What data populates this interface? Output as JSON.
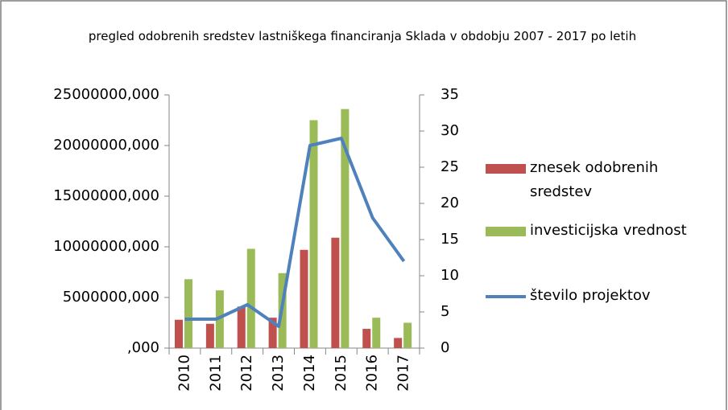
{
  "chart_data": {
    "type": "bar",
    "title": "pregled odobrenih sredstev lastniškega financiranja Sklada v obdobju 2007 - 2017 po letih",
    "categories": [
      "2010",
      "2011",
      "2012",
      "2013",
      "2014",
      "2015",
      "2016",
      "2017"
    ],
    "series": [
      {
        "name": "znesek odobrenih sredstev",
        "type": "bar",
        "color": "#c0504d",
        "values": [
          2800000,
          2400000,
          4100000,
          3000000,
          9700000,
          10900000,
          1900000,
          1000000
        ]
      },
      {
        "name": "investicijska vrednost",
        "type": "bar",
        "color": "#9bbb59",
        "values": [
          6800000,
          5700000,
          9800000,
          7400000,
          22500000,
          23600000,
          3000000,
          2500000
        ]
      },
      {
        "name": "število projektov",
        "type": "line",
        "axis": "y2",
        "color": "#4f81bd",
        "values": [
          4,
          4,
          6,
          3,
          28,
          29,
          18,
          12
        ]
      }
    ],
    "ylim": [
      0,
      25000000
    ],
    "yticks": [
      {
        "value": 0,
        "label": ",000"
      },
      {
        "value": 5000000,
        "label": "5000000,000"
      },
      {
        "value": 10000000,
        "label": "10000000,000"
      },
      {
        "value": 15000000,
        "label": "15000000,000"
      },
      {
        "value": 20000000,
        "label": "20000000,000"
      },
      {
        "value": 25000000,
        "label": "25000000,000"
      }
    ],
    "y2lim": [
      0,
      35
    ],
    "y2ticks": [
      0,
      5,
      10,
      15,
      20,
      25,
      30,
      35
    ],
    "legend": "right",
    "grid": false
  }
}
